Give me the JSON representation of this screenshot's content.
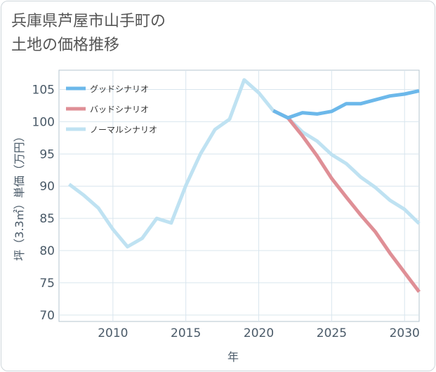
{
  "title": {
    "line1": "兵庫県芦屋市山手町の",
    "line2": "土地の価格推移"
  },
  "chart_data": {
    "type": "line",
    "xlabel": "年",
    "ylabel": "坪（3.3㎡）単価（万円）",
    "xlim": [
      2006.3,
      2031
    ],
    "ylim": [
      69,
      108
    ],
    "xticks": [
      2010,
      2015,
      2020,
      2025,
      2030
    ],
    "yticks": [
      70,
      75,
      80,
      85,
      90,
      95,
      100,
      105
    ],
    "grid": true,
    "legend_position": "top-left",
    "series": [
      {
        "name": "グッドシナリオ",
        "color": "#6cb8ea",
        "points": [
          [
            2021,
            101.7
          ],
          [
            2022,
            100.6
          ],
          [
            2023,
            101.4
          ],
          [
            2024,
            101.2
          ],
          [
            2025,
            101.6
          ],
          [
            2026,
            102.8
          ],
          [
            2027,
            102.8
          ],
          [
            2028,
            103.4
          ],
          [
            2029,
            104.0
          ],
          [
            2030,
            104.3
          ],
          [
            2031,
            104.8
          ]
        ]
      },
      {
        "name": "バッドシナリオ",
        "color": "#df8f96",
        "points": [
          [
            2021,
            101.7
          ],
          [
            2022,
            100.6
          ],
          [
            2023,
            97.8
          ],
          [
            2024,
            94.7
          ],
          [
            2025,
            91.2
          ],
          [
            2026,
            88.3
          ],
          [
            2027,
            85.5
          ],
          [
            2028,
            82.9
          ],
          [
            2029,
            79.6
          ],
          [
            2030,
            76.6
          ],
          [
            2031,
            73.6
          ]
        ]
      },
      {
        "name": "ノーマルシナリオ",
        "color": "#bfe2f2",
        "points": [
          [
            2007,
            90.3
          ],
          [
            2008,
            88.6
          ],
          [
            2009,
            86.6
          ],
          [
            2010,
            83.3
          ],
          [
            2011,
            80.6
          ],
          [
            2012,
            81.9
          ],
          [
            2013,
            85.0
          ],
          [
            2014,
            84.3
          ],
          [
            2015,
            90.1
          ],
          [
            2016,
            95.0
          ],
          [
            2017,
            98.8
          ],
          [
            2018,
            100.4
          ],
          [
            2019,
            106.5
          ],
          [
            2020,
            104.5
          ],
          [
            2021,
            101.7
          ],
          [
            2022,
            100.6
          ],
          [
            2023,
            98.4
          ],
          [
            2024,
            97.0
          ],
          [
            2025,
            94.9
          ],
          [
            2026,
            93.5
          ],
          [
            2027,
            91.4
          ],
          [
            2028,
            89.8
          ],
          [
            2029,
            87.8
          ],
          [
            2030,
            86.4
          ],
          [
            2031,
            84.2
          ]
        ]
      }
    ]
  }
}
